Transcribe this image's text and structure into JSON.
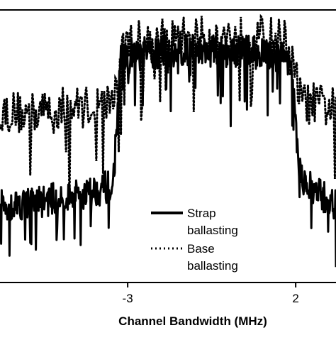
{
  "chart_data": {
    "type": "line",
    "title": "",
    "xlabel": "Channel Bandwidth (MHz)",
    "ylabel": "",
    "x_ticks": [
      {
        "value": -3,
        "label": "-3"
      },
      {
        "value": 2,
        "label": "2"
      }
    ],
    "xlim": [
      -6.8,
      3.2
    ],
    "ylim": [
      0,
      100
    ],
    "grid": false,
    "legend": {
      "placement": "bottom-center",
      "entries": [
        {
          "name_line1": "Strap",
          "name_line2": "ballasting",
          "style": "solid"
        },
        {
          "name_line1": "Base",
          "name_line2": "ballasting",
          "style": "dotted"
        }
      ]
    },
    "series": [
      {
        "key": "strap",
        "style": "solid",
        "color": "#000000",
        "profile": [
          [
            -6.8,
            28
          ],
          [
            -5.5,
            30
          ],
          [
            -4.5,
            32
          ],
          [
            -3.6,
            35
          ],
          [
            -3.45,
            33
          ],
          [
            -3.2,
            82
          ],
          [
            -2.9,
            83
          ],
          [
            -2.5,
            84
          ],
          [
            -2.0,
            84
          ],
          [
            -1.5,
            85
          ],
          [
            -1.0,
            85
          ],
          [
            -0.5,
            85
          ],
          [
            0.0,
            85
          ],
          [
            0.5,
            85
          ],
          [
            1.0,
            84
          ],
          [
            1.5,
            83
          ],
          [
            1.85,
            82
          ],
          [
            2.1,
            40
          ],
          [
            2.4,
            35
          ],
          [
            3.2,
            28
          ]
        ],
        "noise": 6,
        "samples": 600
      },
      {
        "key": "base",
        "style": "dotted",
        "color": "#000000",
        "profile": [
          [
            -6.8,
            63
          ],
          [
            -6.0,
            62
          ],
          [
            -5.0,
            64
          ],
          [
            -4.0,
            65
          ],
          [
            -3.5,
            66
          ],
          [
            -3.3,
            74
          ],
          [
            -3.1,
            88
          ],
          [
            -2.5,
            89
          ],
          [
            -2.0,
            89
          ],
          [
            -1.0,
            90
          ],
          [
            0.0,
            90
          ],
          [
            1.0,
            90
          ],
          [
            1.7,
            89
          ],
          [
            2.0,
            75
          ],
          [
            2.2,
            66
          ],
          [
            3.2,
            64
          ]
        ],
        "noise": 8,
        "samples": 300
      }
    ]
  }
}
